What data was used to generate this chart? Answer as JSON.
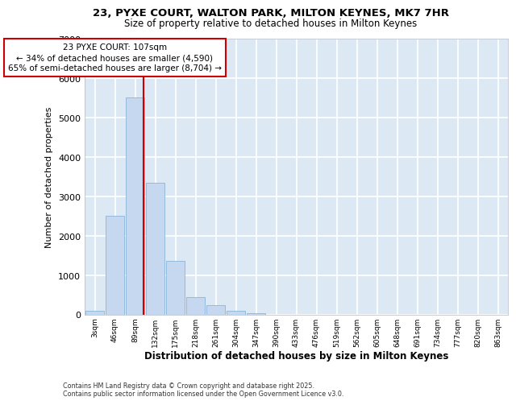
{
  "title_line1": "23, PYXE COURT, WALTON PARK, MILTON KEYNES, MK7 7HR",
  "title_line2": "Size of property relative to detached houses in Milton Keynes",
  "xlabel": "Distribution of detached houses by size in Milton Keynes",
  "ylabel": "Number of detached properties",
  "bin_labels": [
    "3sqm",
    "46sqm",
    "89sqm",
    "132sqm",
    "175sqm",
    "218sqm",
    "261sqm",
    "304sqm",
    "347sqm",
    "390sqm",
    "433sqm",
    "476sqm",
    "519sqm",
    "562sqm",
    "605sqm",
    "648sqm",
    "691sqm",
    "734sqm",
    "777sqm",
    "820sqm",
    "863sqm"
  ],
  "bar_values": [
    100,
    2500,
    5500,
    3350,
    1350,
    430,
    230,
    100,
    40,
    0,
    0,
    0,
    0,
    0,
    0,
    0,
    0,
    0,
    0,
    0,
    0
  ],
  "bar_color": "#c5d8f0",
  "bar_edge_color": "#8ab4d8",
  "bg_color": "#dde8f5",
  "grid_color": "#ffffff",
  "annotation_text_line1": "23 PYXE COURT: 107sqm",
  "annotation_text_line2": "← 34% of detached houses are smaller (4,590)",
  "annotation_text_line3": "65% of semi-detached houses are larger (8,704) →",
  "vline_x": 2.42,
  "ylim": [
    0,
    7000
  ],
  "yticks": [
    0,
    1000,
    2000,
    3000,
    4000,
    5000,
    6000,
    7000
  ],
  "footer_line1": "Contains HM Land Registry data © Crown copyright and database right 2025.",
  "footer_line2": "Contains public sector information licensed under the Open Government Licence v3.0."
}
